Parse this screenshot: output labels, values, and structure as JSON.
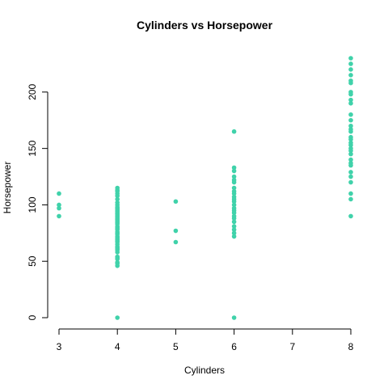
{
  "chart_data": {
    "type": "scatter",
    "title": "Cylinders vs Horsepower",
    "xlabel": "Cylinders",
    "ylabel": "Horsepower",
    "xlim": [
      3,
      8
    ],
    "ylim": [
      0,
      230
    ],
    "xticks": [
      3,
      4,
      5,
      6,
      7,
      8
    ],
    "yticks": [
      0,
      50,
      100,
      150,
      200
    ],
    "marker_color": "#40D2AA",
    "grid": false,
    "points": [
      {
        "x": 3,
        "y": 90
      },
      {
        "x": 3,
        "y": 97
      },
      {
        "x": 3,
        "y": 100
      },
      {
        "x": 3,
        "y": 110
      },
      {
        "x": 4,
        "y": 0
      },
      {
        "x": 4,
        "y": 46
      },
      {
        "x": 4,
        "y": 48
      },
      {
        "x": 4,
        "y": 49
      },
      {
        "x": 4,
        "y": 52
      },
      {
        "x": 4,
        "y": 53
      },
      {
        "x": 4,
        "y": 54
      },
      {
        "x": 4,
        "y": 58
      },
      {
        "x": 4,
        "y": 60
      },
      {
        "x": 4,
        "y": 61
      },
      {
        "x": 4,
        "y": 62
      },
      {
        "x": 4,
        "y": 63
      },
      {
        "x": 4,
        "y": 65
      },
      {
        "x": 4,
        "y": 67
      },
      {
        "x": 4,
        "y": 68
      },
      {
        "x": 4,
        "y": 69
      },
      {
        "x": 4,
        "y": 70
      },
      {
        "x": 4,
        "y": 71
      },
      {
        "x": 4,
        "y": 72
      },
      {
        "x": 4,
        "y": 74
      },
      {
        "x": 4,
        "y": 75
      },
      {
        "x": 4,
        "y": 76
      },
      {
        "x": 4,
        "y": 78
      },
      {
        "x": 4,
        "y": 79
      },
      {
        "x": 4,
        "y": 80
      },
      {
        "x": 4,
        "y": 81
      },
      {
        "x": 4,
        "y": 83
      },
      {
        "x": 4,
        "y": 84
      },
      {
        "x": 4,
        "y": 85
      },
      {
        "x": 4,
        "y": 86
      },
      {
        "x": 4,
        "y": 87
      },
      {
        "x": 4,
        "y": 88
      },
      {
        "x": 4,
        "y": 89
      },
      {
        "x": 4,
        "y": 90
      },
      {
        "x": 4,
        "y": 91
      },
      {
        "x": 4,
        "y": 92
      },
      {
        "x": 4,
        "y": 93
      },
      {
        "x": 4,
        "y": 94
      },
      {
        "x": 4,
        "y": 95
      },
      {
        "x": 4,
        "y": 96
      },
      {
        "x": 4,
        "y": 97
      },
      {
        "x": 4,
        "y": 98
      },
      {
        "x": 4,
        "y": 100
      },
      {
        "x": 4,
        "y": 102
      },
      {
        "x": 4,
        "y": 105
      },
      {
        "x": 4,
        "y": 108
      },
      {
        "x": 4,
        "y": 110
      },
      {
        "x": 4,
        "y": 112
      },
      {
        "x": 4,
        "y": 113
      },
      {
        "x": 4,
        "y": 115
      },
      {
        "x": 5,
        "y": 67
      },
      {
        "x": 5,
        "y": 77
      },
      {
        "x": 5,
        "y": 103
      },
      {
        "x": 6,
        "y": 0
      },
      {
        "x": 6,
        "y": 72
      },
      {
        "x": 6,
        "y": 75
      },
      {
        "x": 6,
        "y": 78
      },
      {
        "x": 6,
        "y": 81
      },
      {
        "x": 6,
        "y": 85
      },
      {
        "x": 6,
        "y": 88
      },
      {
        "x": 6,
        "y": 90
      },
      {
        "x": 6,
        "y": 93
      },
      {
        "x": 6,
        "y": 95
      },
      {
        "x": 6,
        "y": 97
      },
      {
        "x": 6,
        "y": 100
      },
      {
        "x": 6,
        "y": 103
      },
      {
        "x": 6,
        "y": 105
      },
      {
        "x": 6,
        "y": 107
      },
      {
        "x": 6,
        "y": 110
      },
      {
        "x": 6,
        "y": 112
      },
      {
        "x": 6,
        "y": 115
      },
      {
        "x": 6,
        "y": 120
      },
      {
        "x": 6,
        "y": 122
      },
      {
        "x": 6,
        "y": 125
      },
      {
        "x": 6,
        "y": 130
      },
      {
        "x": 6,
        "y": 133
      },
      {
        "x": 6,
        "y": 165
      },
      {
        "x": 8,
        "y": 90
      },
      {
        "x": 8,
        "y": 105
      },
      {
        "x": 8,
        "y": 110
      },
      {
        "x": 8,
        "y": 120
      },
      {
        "x": 8,
        "y": 125
      },
      {
        "x": 8,
        "y": 129
      },
      {
        "x": 8,
        "y": 135
      },
      {
        "x": 8,
        "y": 137
      },
      {
        "x": 8,
        "y": 140
      },
      {
        "x": 8,
        "y": 145
      },
      {
        "x": 8,
        "y": 148
      },
      {
        "x": 8,
        "y": 150
      },
      {
        "x": 8,
        "y": 153
      },
      {
        "x": 8,
        "y": 155
      },
      {
        "x": 8,
        "y": 158
      },
      {
        "x": 8,
        "y": 160
      },
      {
        "x": 8,
        "y": 165
      },
      {
        "x": 8,
        "y": 167
      },
      {
        "x": 8,
        "y": 170
      },
      {
        "x": 8,
        "y": 175
      },
      {
        "x": 8,
        "y": 180
      },
      {
        "x": 8,
        "y": 190
      },
      {
        "x": 8,
        "y": 193
      },
      {
        "x": 8,
        "y": 198
      },
      {
        "x": 8,
        "y": 200
      },
      {
        "x": 8,
        "y": 208
      },
      {
        "x": 8,
        "y": 210
      },
      {
        "x": 8,
        "y": 215
      },
      {
        "x": 8,
        "y": 220
      },
      {
        "x": 8,
        "y": 225
      },
      {
        "x": 8,
        "y": 230
      }
    ]
  }
}
